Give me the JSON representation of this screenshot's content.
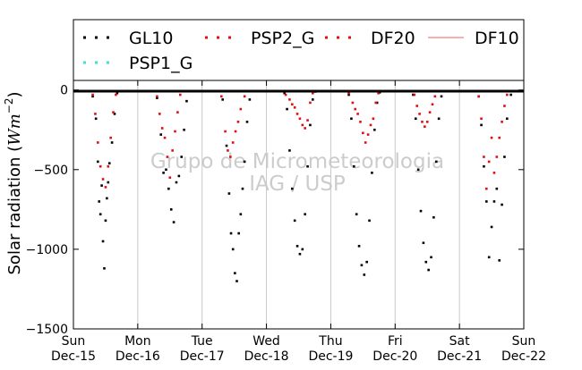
{
  "chart_data": {
    "type": "scatter",
    "ylabel": "Solar radiation (Wm^-2)",
    "ylim": [
      -1500,
      60
    ],
    "xlim": [
      0,
      7
    ],
    "yticks": [
      0,
      -500,
      -1000,
      -1500
    ],
    "ytick_labels": [
      "0",
      "−500",
      "−1000",
      "−1500"
    ],
    "grid": "vertical lines at day boundaries",
    "legend_position": "top (above plot, 4 columns)",
    "watermark": [
      "Grupo de Micrometeorologia",
      "IAG / USP"
    ],
    "xticks": [
      {
        "x": 0,
        "day": "Sun",
        "date": "Dec-15"
      },
      {
        "x": 1,
        "day": "Mon",
        "date": "Dec-16"
      },
      {
        "x": 2,
        "day": "Tue",
        "date": "Dec-17"
      },
      {
        "x": 3,
        "day": "Wed",
        "date": "Dec-18"
      },
      {
        "x": 4,
        "day": "Thu",
        "date": "Dec-19"
      },
      {
        "x": 5,
        "day": "Fri",
        "date": "Dec-20"
      },
      {
        "x": 6,
        "day": "Sat",
        "date": "Dec-21"
      },
      {
        "x": 7,
        "day": "Sun",
        "date": "Dec-22"
      }
    ],
    "series": [
      {
        "name": "GL10",
        "color": "#000000",
        "marker": "dot",
        "points": [
          [
            0.3,
            -40
          ],
          [
            0.35,
            -180
          ],
          [
            0.38,
            -450
          ],
          [
            0.4,
            -700
          ],
          [
            0.42,
            -780
          ],
          [
            0.44,
            -600
          ],
          [
            0.46,
            -950
          ],
          [
            0.48,
            -1120
          ],
          [
            0.5,
            -820
          ],
          [
            0.52,
            -680
          ],
          [
            0.54,
            -580
          ],
          [
            0.56,
            -460
          ],
          [
            0.6,
            -330
          ],
          [
            0.64,
            -150
          ],
          [
            0.68,
            -20
          ],
          [
            1.3,
            -50
          ],
          [
            1.36,
            -280
          ],
          [
            1.4,
            -520
          ],
          [
            1.44,
            -500
          ],
          [
            1.48,
            -620
          ],
          [
            1.52,
            -750
          ],
          [
            1.56,
            -830
          ],
          [
            1.6,
            -580
          ],
          [
            1.64,
            -540
          ],
          [
            1.68,
            -420
          ],
          [
            1.72,
            -250
          ],
          [
            1.76,
            -70
          ],
          [
            2.32,
            -60
          ],
          [
            2.38,
            -350
          ],
          [
            2.42,
            -650
          ],
          [
            2.45,
            -900
          ],
          [
            2.48,
            -1000
          ],
          [
            2.51,
            -1150
          ],
          [
            2.54,
            -1200
          ],
          [
            2.57,
            -900
          ],
          [
            2.6,
            -780
          ],
          [
            2.63,
            -620
          ],
          [
            2.66,
            -450
          ],
          [
            2.7,
            -200
          ],
          [
            2.74,
            -60
          ],
          [
            3.28,
            -20
          ],
          [
            3.32,
            -120
          ],
          [
            3.36,
            -380
          ],
          [
            3.4,
            -620
          ],
          [
            3.44,
            -820
          ],
          [
            3.48,
            -980
          ],
          [
            3.52,
            -1030
          ],
          [
            3.56,
            -1000
          ],
          [
            3.6,
            -780
          ],
          [
            3.64,
            -480
          ],
          [
            3.68,
            -220
          ],
          [
            3.72,
            -60
          ],
          [
            3.76,
            -10
          ],
          [
            4.28,
            -30
          ],
          [
            4.32,
            -180
          ],
          [
            4.36,
            -480
          ],
          [
            4.4,
            -780
          ],
          [
            4.44,
            -980
          ],
          [
            4.48,
            -1100
          ],
          [
            4.52,
            -1160
          ],
          [
            4.56,
            -1080
          ],
          [
            4.6,
            -820
          ],
          [
            4.64,
            -520
          ],
          [
            4.68,
            -250
          ],
          [
            4.72,
            -80
          ],
          [
            4.76,
            -15
          ],
          [
            5.28,
            -30
          ],
          [
            5.32,
            -180
          ],
          [
            5.36,
            -500
          ],
          [
            5.4,
            -760
          ],
          [
            5.44,
            -960
          ],
          [
            5.48,
            -1080
          ],
          [
            5.52,
            -1130
          ],
          [
            5.56,
            -1050
          ],
          [
            5.6,
            -800
          ],
          [
            5.64,
            -450
          ],
          [
            5.68,
            -180
          ],
          [
            5.72,
            -40
          ],
          [
            6.3,
            -40
          ],
          [
            6.34,
            -220
          ],
          [
            6.38,
            -480
          ],
          [
            6.42,
            -700
          ],
          [
            6.46,
            -1050
          ],
          [
            6.5,
            -860
          ],
          [
            6.54,
            -700
          ],
          [
            6.58,
            -620
          ],
          [
            6.62,
            -1070
          ],
          [
            6.66,
            -720
          ],
          [
            6.7,
            -420
          ],
          [
            6.74,
            -180
          ],
          [
            6.8,
            -30
          ]
        ]
      },
      {
        "name": "PSP1_G",
        "color": "#40e0d0",
        "marker": "dot",
        "points": []
      },
      {
        "name": "PSP2_G",
        "color": "#e01010",
        "marker": "dot",
        "points": [
          [
            0.3,
            -30
          ],
          [
            0.34,
            -150
          ],
          [
            0.38,
            -330
          ],
          [
            0.42,
            -480
          ],
          [
            0.46,
            -560
          ],
          [
            0.5,
            -610
          ],
          [
            0.54,
            -480
          ],
          [
            0.58,
            -300
          ],
          [
            0.62,
            -140
          ],
          [
            0.66,
            -30
          ],
          [
            1.3,
            -40
          ],
          [
            1.34,
            -150
          ],
          [
            1.38,
            -240
          ],
          [
            1.42,
            -300
          ],
          [
            1.46,
            -420
          ],
          [
            1.5,
            -550
          ],
          [
            1.54,
            -380
          ],
          [
            1.58,
            -260
          ],
          [
            1.62,
            -140
          ],
          [
            1.66,
            -30
          ],
          [
            2.3,
            -40
          ],
          [
            2.36,
            -260
          ],
          [
            2.4,
            -380
          ],
          [
            2.44,
            -420
          ],
          [
            2.48,
            -330
          ],
          [
            2.52,
            -260
          ],
          [
            2.56,
            -200
          ],
          [
            2.6,
            -120
          ],
          [
            2.66,
            -40
          ],
          [
            3.3,
            -30
          ],
          [
            3.36,
            -60
          ],
          [
            3.4,
            -90
          ],
          [
            3.44,
            -110
          ],
          [
            3.48,
            -150
          ],
          [
            3.52,
            -180
          ],
          [
            3.56,
            -220
          ],
          [
            3.6,
            -240
          ],
          [
            3.64,
            -190
          ],
          [
            3.68,
            -80
          ],
          [
            3.72,
            -20
          ],
          [
            4.28,
            -20
          ],
          [
            4.34,
            -80
          ],
          [
            4.38,
            -120
          ],
          [
            4.42,
            -150
          ],
          [
            4.46,
            -200
          ],
          [
            4.5,
            -270
          ],
          [
            4.54,
            -330
          ],
          [
            4.58,
            -280
          ],
          [
            4.62,
            -220
          ],
          [
            4.66,
            -180
          ],
          [
            4.7,
            -80
          ],
          [
            4.74,
            -20
          ],
          [
            5.3,
            -30
          ],
          [
            5.34,
            -100
          ],
          [
            5.38,
            -150
          ],
          [
            5.42,
            -200
          ],
          [
            5.46,
            -230
          ],
          [
            5.5,
            -200
          ],
          [
            5.54,
            -140
          ],
          [
            5.58,
            -90
          ],
          [
            5.62,
            -40
          ],
          [
            6.3,
            -40
          ],
          [
            6.34,
            -180
          ],
          [
            6.38,
            -420
          ],
          [
            6.42,
            -620
          ],
          [
            6.46,
            -450
          ],
          [
            6.5,
            -300
          ],
          [
            6.54,
            -520
          ],
          [
            6.58,
            -420
          ],
          [
            6.62,
            -300
          ],
          [
            6.66,
            -200
          ],
          [
            6.7,
            -100
          ],
          [
            6.74,
            -30
          ]
        ]
      },
      {
        "name": "DF20",
        "color": "#e01010",
        "marker": "dot",
        "points": []
      },
      {
        "name": "DF10",
        "color": "#f08080",
        "marker": "line",
        "points": []
      }
    ]
  }
}
